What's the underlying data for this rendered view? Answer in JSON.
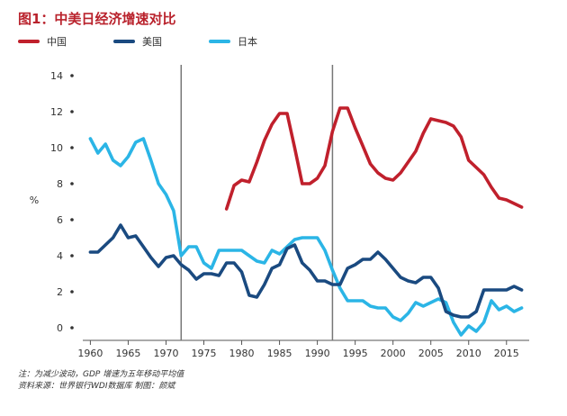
{
  "chart_data": {
    "type": "line",
    "title": "图1：中美日经济增速对比",
    "ylabel": "%",
    "xlabel": "",
    "xlim": [
      1959,
      2018
    ],
    "ylim": [
      -0.7,
      14.7
    ],
    "xticks": [
      1960,
      1965,
      1970,
      1975,
      1980,
      1985,
      1990,
      1995,
      2000,
      2005,
      2010,
      2015
    ],
    "yticks": [
      0,
      2,
      4,
      6,
      8,
      10,
      12,
      14
    ],
    "reference_lines_x": [
      1972,
      1992
    ],
    "legend_position": "top-left",
    "grid": false,
    "series": [
      {
        "name": "中国",
        "color": "#c0202c",
        "x": [
          1978,
          1979,
          1980,
          1981,
          1982,
          1983,
          1984,
          1985,
          1986,
          1987,
          1988,
          1989,
          1990,
          1991,
          1992,
          1993,
          1994,
          1995,
          1996,
          1997,
          1998,
          1999,
          2000,
          2001,
          2002,
          2003,
          2004,
          2005,
          2006,
          2007,
          2008,
          2009,
          2010,
          2011,
          2012,
          2013,
          2014,
          2015,
          2016,
          2017
        ],
        "y": [
          6.6,
          7.9,
          8.2,
          8.1,
          9.2,
          10.4,
          11.3,
          11.9,
          11.9,
          10.0,
          8.0,
          8.0,
          8.3,
          9.0,
          10.9,
          12.2,
          12.2,
          11.1,
          10.1,
          9.1,
          8.6,
          8.3,
          8.2,
          8.6,
          9.2,
          9.8,
          10.8,
          11.6,
          11.5,
          11.4,
          11.2,
          10.6,
          9.3,
          8.9,
          8.5,
          7.8,
          7.2,
          7.1,
          6.9,
          6.7
        ]
      },
      {
        "name": "美国",
        "color": "#1a4a80",
        "x": [
          1960,
          1961,
          1962,
          1963,
          1964,
          1965,
          1966,
          1967,
          1968,
          1969,
          1970,
          1971,
          1972,
          1973,
          1974,
          1975,
          1976,
          1977,
          1978,
          1979,
          1980,
          1981,
          1982,
          1983,
          1984,
          1985,
          1986,
          1987,
          1988,
          1989,
          1990,
          1991,
          1992,
          1993,
          1994,
          1995,
          1996,
          1997,
          1998,
          1999,
          2000,
          2001,
          2002,
          2003,
          2004,
          2005,
          2006,
          2007,
          2008,
          2009,
          2010,
          2011,
          2012,
          2013,
          2014,
          2015,
          2016,
          2017
        ],
        "y": [
          4.2,
          4.2,
          4.6,
          5.0,
          5.7,
          5.0,
          5.1,
          4.5,
          3.9,
          3.4,
          3.9,
          4.0,
          3.5,
          3.2,
          2.7,
          3.0,
          3.0,
          2.9,
          3.6,
          3.6,
          3.1,
          1.8,
          1.7,
          2.4,
          3.3,
          3.5,
          4.4,
          4.6,
          3.6,
          3.2,
          2.6,
          2.6,
          2.4,
          2.4,
          3.3,
          3.5,
          3.8,
          3.8,
          4.2,
          3.8,
          3.3,
          2.8,
          2.6,
          2.5,
          2.8,
          2.8,
          2.2,
          0.9,
          0.7,
          0.6,
          0.6,
          0.9,
          2.1,
          2.1,
          2.1,
          2.1,
          2.3,
          2.1
        ]
      },
      {
        "name": "日本",
        "color": "#2bb5e6",
        "x": [
          1960,
          1961,
          1962,
          1963,
          1964,
          1965,
          1966,
          1967,
          1968,
          1969,
          1970,
          1971,
          1972,
          1973,
          1974,
          1975,
          1976,
          1977,
          1978,
          1979,
          1980,
          1981,
          1982,
          1983,
          1984,
          1985,
          1986,
          1987,
          1988,
          1989,
          1990,
          1991,
          1992,
          1993,
          1994,
          1995,
          1996,
          1997,
          1998,
          1999,
          2000,
          2001,
          2002,
          2003,
          2004,
          2005,
          2006,
          2007,
          2008,
          2009,
          2010,
          2011,
          2012,
          2013,
          2014,
          2015,
          2016,
          2017
        ],
        "y": [
          10.5,
          9.7,
          10.2,
          9.3,
          9.0,
          9.5,
          10.3,
          10.5,
          9.3,
          8.0,
          7.4,
          6.5,
          4.0,
          4.5,
          4.5,
          3.6,
          3.3,
          4.3,
          4.3,
          4.3,
          4.3,
          4.0,
          3.7,
          3.6,
          4.3,
          4.1,
          4.5,
          4.9,
          5.0,
          5.0,
          5.0,
          4.3,
          3.2,
          2.2,
          1.5,
          1.5,
          1.5,
          1.2,
          1.1,
          1.1,
          0.6,
          0.4,
          0.8,
          1.4,
          1.2,
          1.4,
          1.6,
          1.4,
          0.3,
          -0.4,
          0.1,
          -0.2,
          0.3,
          1.5,
          1.0,
          1.2,
          0.9,
          1.1
        ]
      }
    ]
  },
  "notes": {
    "line1": "注：为减少波动，GDP 增速为五年移动平均值",
    "line2": "资料来源：世界银行WDI数据库    制图：颜斌"
  }
}
